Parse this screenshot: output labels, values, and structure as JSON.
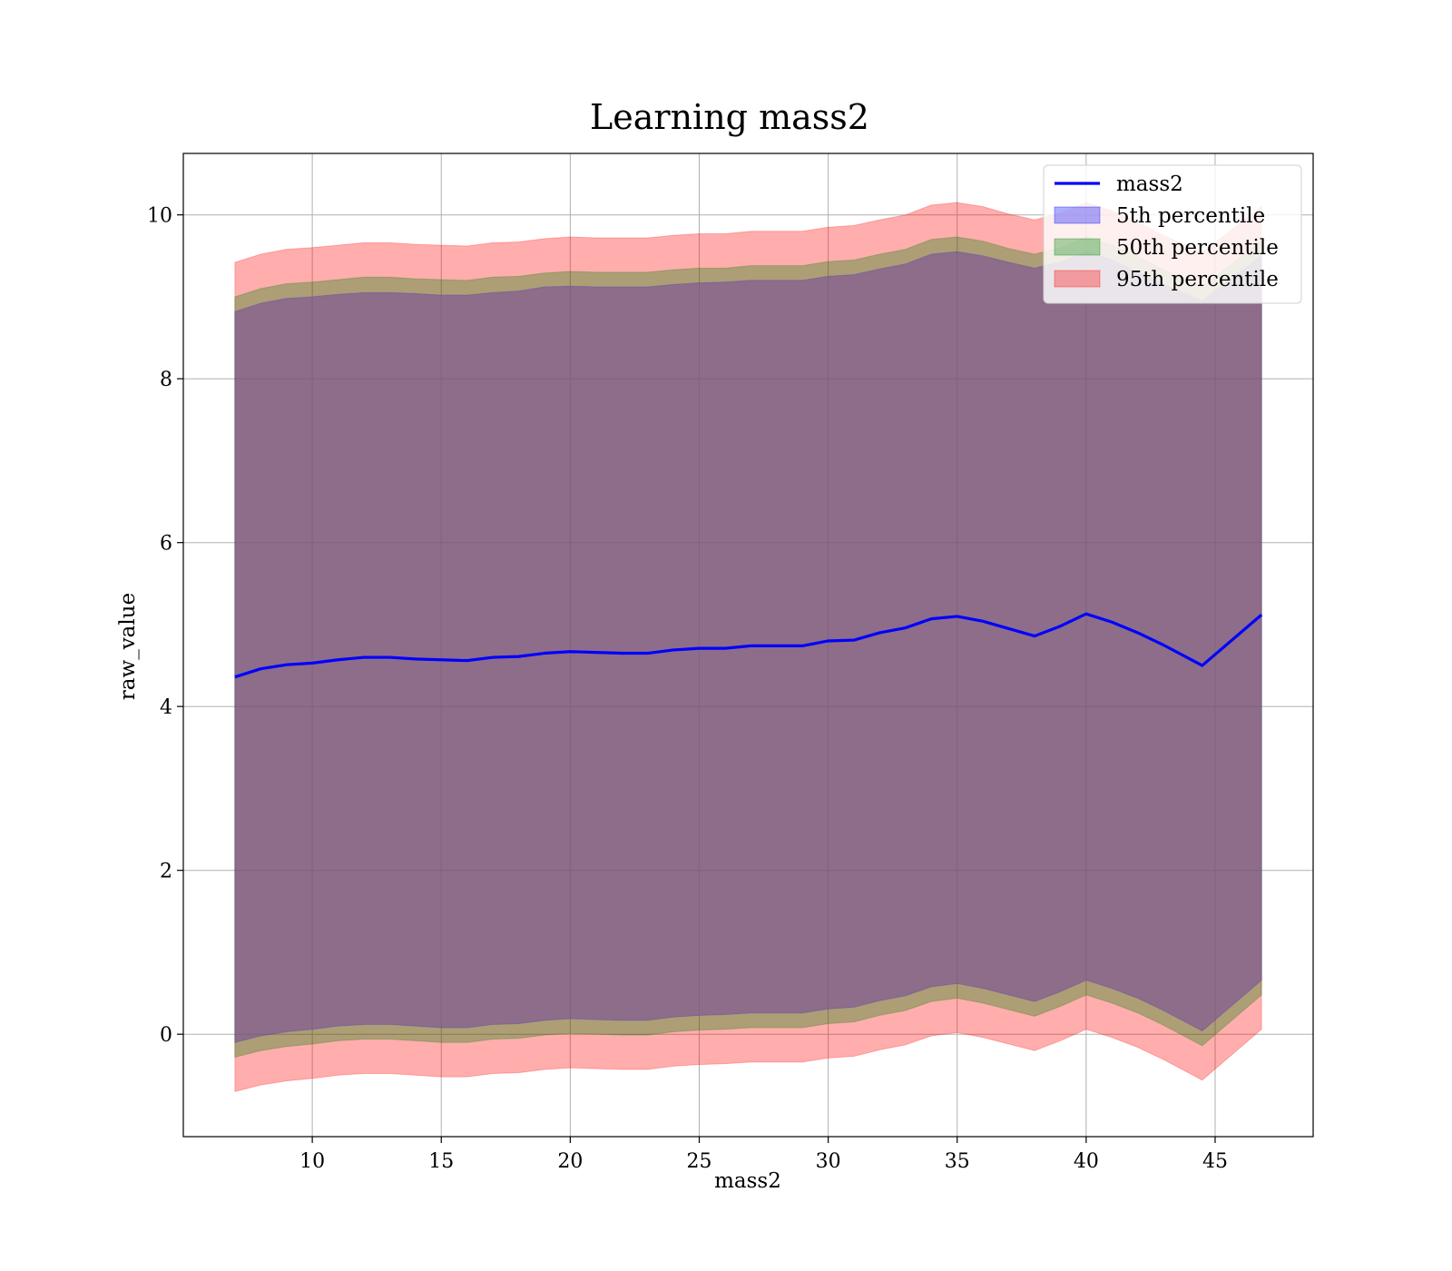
{
  "chart_data": {
    "type": "area",
    "title": "Learning mass2",
    "xlabel": "mass2",
    "ylabel": "raw_value",
    "xlim": [
      5.0,
      48.8
    ],
    "ylim": [
      -1.25,
      10.75
    ],
    "x_ticks": [
      10,
      15,
      20,
      25,
      30,
      35,
      40,
      45
    ],
    "y_ticks": [
      0,
      2,
      4,
      6,
      8,
      10
    ],
    "grid": true,
    "legend_position": "top-right",
    "colors": {
      "line": "#0000ff",
      "p5": "#0000ff",
      "p50": "#008000",
      "p95": "#ff0000",
      "overlap": "#a07077"
    },
    "x": [
      7.0,
      8.0,
      9.0,
      10.0,
      11.0,
      12.0,
      13.0,
      14.0,
      15.0,
      16.0,
      17.0,
      18.0,
      19.0,
      20.0,
      21.0,
      22.0,
      23.0,
      24.0,
      25.0,
      26.0,
      27.0,
      28.0,
      29.0,
      30.0,
      31.0,
      32.0,
      33.0,
      34.0,
      35.0,
      36.0,
      37.0,
      38.0,
      39.0,
      40.0,
      41.0,
      42.0,
      43.0,
      44.5,
      46.8
    ],
    "series": [
      {
        "name": "mass2",
        "kind": "line",
        "values": [
          4.36,
          4.46,
          4.51,
          4.53,
          4.57,
          4.6,
          4.6,
          4.58,
          4.57,
          4.56,
          4.6,
          4.61,
          4.65,
          4.67,
          4.66,
          4.65,
          4.65,
          4.69,
          4.71,
          4.71,
          4.74,
          4.74,
          4.74,
          4.8,
          4.81,
          4.9,
          4.96,
          5.07,
          5.1,
          5.04,
          4.95,
          4.86,
          4.98,
          5.13,
          5.03,
          4.9,
          4.75,
          4.5,
          5.12
        ]
      },
      {
        "name": "5th percentile",
        "kind": "band",
        "upper": [
          8.82,
          8.92,
          8.98,
          9.0,
          9.03,
          9.05,
          9.05,
          9.04,
          9.02,
          9.02,
          9.05,
          9.07,
          9.12,
          9.13,
          9.12,
          9.12,
          9.12,
          9.15,
          9.17,
          9.18,
          9.2,
          9.2,
          9.2,
          9.25,
          9.27,
          9.34,
          9.4,
          9.52,
          9.55,
          9.5,
          9.42,
          9.35,
          9.42,
          9.55,
          9.45,
          9.3,
          9.15,
          8.95,
          9.5
        ],
        "lower": [
          -0.1,
          -0.02,
          0.03,
          0.06,
          0.1,
          0.12,
          0.12,
          0.1,
          0.08,
          0.08,
          0.12,
          0.13,
          0.17,
          0.19,
          0.18,
          0.17,
          0.17,
          0.21,
          0.23,
          0.24,
          0.26,
          0.26,
          0.26,
          0.31,
          0.33,
          0.41,
          0.47,
          0.58,
          0.62,
          0.56,
          0.48,
          0.4,
          0.52,
          0.66,
          0.56,
          0.44,
          0.29,
          0.04,
          0.66
        ]
      },
      {
        "name": "50th percentile",
        "kind": "band",
        "upper": [
          9.0,
          9.1,
          9.16,
          9.18,
          9.21,
          9.24,
          9.24,
          9.22,
          9.21,
          9.2,
          9.24,
          9.25,
          9.29,
          9.31,
          9.3,
          9.3,
          9.3,
          9.33,
          9.35,
          9.35,
          9.38,
          9.38,
          9.38,
          9.43,
          9.45,
          9.52,
          9.58,
          9.7,
          9.73,
          9.68,
          9.59,
          9.52,
          9.6,
          9.73,
          9.63,
          9.49,
          9.33,
          9.12,
          9.68
        ],
        "lower": [
          -0.28,
          -0.2,
          -0.15,
          -0.12,
          -0.08,
          -0.06,
          -0.06,
          -0.08,
          -0.1,
          -0.1,
          -0.06,
          -0.05,
          -0.01,
          0.01,
          0.0,
          -0.01,
          -0.01,
          0.03,
          0.05,
          0.06,
          0.08,
          0.08,
          0.08,
          0.13,
          0.15,
          0.23,
          0.29,
          0.4,
          0.44,
          0.38,
          0.3,
          0.22,
          0.34,
          0.48,
          0.38,
          0.26,
          0.11,
          -0.14,
          0.48
        ]
      },
      {
        "name": "95th percentile",
        "kind": "band",
        "upper": [
          9.42,
          9.52,
          9.58,
          9.6,
          9.63,
          9.66,
          9.66,
          9.64,
          9.63,
          9.62,
          9.66,
          9.67,
          9.71,
          9.73,
          9.72,
          9.72,
          9.72,
          9.75,
          9.77,
          9.77,
          9.8,
          9.8,
          9.8,
          9.85,
          9.87,
          9.94,
          10.0,
          10.12,
          10.15,
          10.1,
          10.01,
          9.94,
          10.02,
          10.15,
          10.05,
          9.91,
          9.75,
          9.54,
          10.1
        ],
        "lower": [
          -0.7,
          -0.62,
          -0.57,
          -0.54,
          -0.5,
          -0.48,
          -0.48,
          -0.5,
          -0.52,
          -0.52,
          -0.48,
          -0.47,
          -0.43,
          -0.41,
          -0.42,
          -0.43,
          -0.43,
          -0.39,
          -0.37,
          -0.36,
          -0.34,
          -0.34,
          -0.34,
          -0.29,
          -0.27,
          -0.19,
          -0.13,
          -0.02,
          0.02,
          -0.04,
          -0.12,
          -0.2,
          -0.08,
          0.06,
          -0.04,
          -0.16,
          -0.31,
          -0.56,
          0.06
        ]
      }
    ]
  }
}
